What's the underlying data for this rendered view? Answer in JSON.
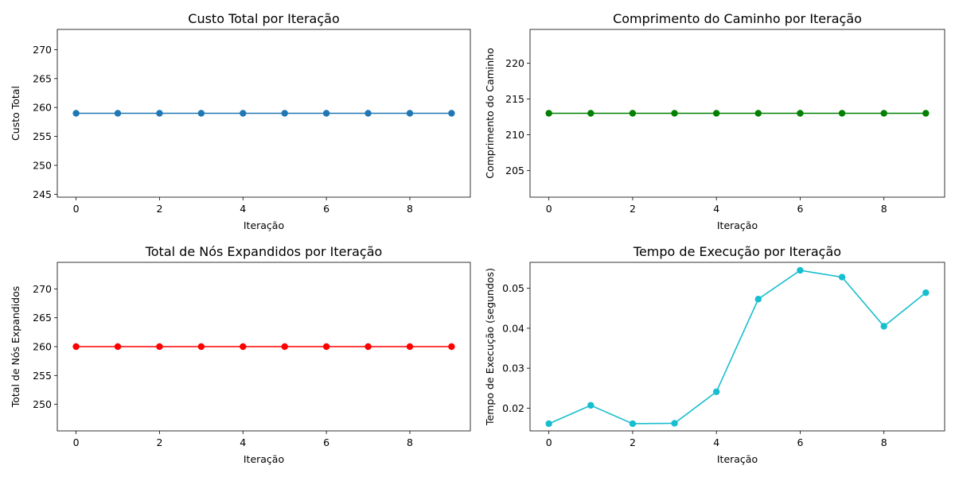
{
  "chart_data": [
    {
      "type": "line",
      "title": "Custo Total por Iteração",
      "xlabel": "Iteração",
      "ylabel": "Custo Total",
      "xlim": [
        -0.45,
        9.45
      ],
      "ylim": [
        244.5,
        273.5
      ],
      "xticks": [
        0,
        2,
        4,
        6,
        8
      ],
      "yticks": [
        245,
        250,
        255,
        260,
        265,
        270
      ],
      "grid": false,
      "color": "#1f77b4",
      "x": [
        0,
        1,
        2,
        3,
        4,
        5,
        6,
        7,
        8,
        9
      ],
      "values": [
        259,
        259,
        259,
        259,
        259,
        259,
        259,
        259,
        259,
        259
      ]
    },
    {
      "type": "line",
      "title": "Comprimento do Caminho por Iteração",
      "xlabel": "Iteração",
      "ylabel": "Comprimento do Caminho",
      "xlim": [
        -0.45,
        9.45
      ],
      "ylim": [
        201.3,
        224.7
      ],
      "xticks": [
        0,
        2,
        4,
        6,
        8
      ],
      "yticks": [
        205,
        210,
        215,
        220
      ],
      "grid": false,
      "color": "#008000",
      "x": [
        0,
        1,
        2,
        3,
        4,
        5,
        6,
        7,
        8,
        9
      ],
      "values": [
        213,
        213,
        213,
        213,
        213,
        213,
        213,
        213,
        213,
        213
      ]
    },
    {
      "type": "line",
      "title": "Total de Nós Expandidos por Iteração",
      "xlabel": "Iteração",
      "ylabel": "Total de Nós Expandidos",
      "xlim": [
        -0.45,
        9.45
      ],
      "ylim": [
        245.4,
        274.6
      ],
      "xticks": [
        0,
        2,
        4,
        6,
        8
      ],
      "yticks": [
        250,
        255,
        260,
        265,
        270
      ],
      "grid": false,
      "color": "#ff0000",
      "x": [
        0,
        1,
        2,
        3,
        4,
        5,
        6,
        7,
        8,
        9
      ],
      "values": [
        260,
        260,
        260,
        260,
        260,
        260,
        260,
        260,
        260,
        260
      ]
    },
    {
      "type": "line",
      "title": "Tempo de Execução por Iteração",
      "xlabel": "Iteração",
      "ylabel": "Tempo de Execução (segundos)",
      "xlim": [
        -0.45,
        9.45
      ],
      "ylim": [
        0.0143,
        0.0565
      ],
      "xticks": [
        0,
        2,
        4,
        6,
        8
      ],
      "yticks": [
        "0.02",
        "0.03",
        "0.04",
        "0.05"
      ],
      "grid": false,
      "color": "#17becf",
      "x": [
        0,
        1,
        2,
        3,
        4,
        5,
        6,
        7,
        8,
        9
      ],
      "values": [
        0.0161,
        0.0207,
        0.0161,
        0.0162,
        0.0241,
        0.0473,
        0.0545,
        0.0528,
        0.0405,
        0.0489
      ]
    }
  ]
}
